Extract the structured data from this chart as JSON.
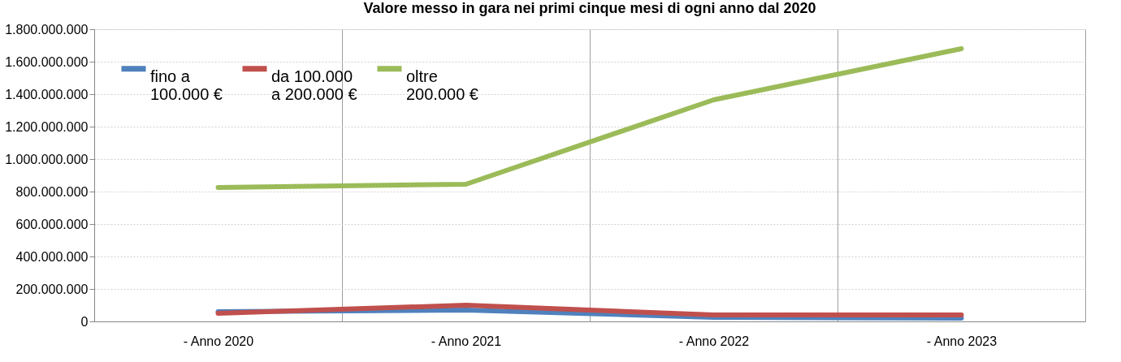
{
  "chart_data": {
    "type": "line",
    "title": "Valore messo in gara nei primi cinque mesi di ogni anno dal 2020",
    "categories": [
      "- Anno 2020",
      "- Anno 2021",
      "- Anno 2022",
      "- Anno 2023"
    ],
    "series": [
      {
        "name": "fino a\n100.000 €",
        "color": "#4f81bd",
        "values": [
          60000000,
          70000000,
          25000000,
          20000000
        ]
      },
      {
        "name": "da 100.000\na 200.000 €",
        "color": "#c0504d",
        "values": [
          50000000,
          100000000,
          40000000,
          40000000
        ]
      },
      {
        "name": "oltre\n200.000 €",
        "color": "#9bbb59",
        "values": [
          825000000,
          845000000,
          1365000000,
          1680000000
        ]
      }
    ],
    "ylim": [
      0,
      1800000000
    ],
    "yticks": [
      {
        "value": 0,
        "label": "0"
      },
      {
        "value": 200000000,
        "label": "200.000.000"
      },
      {
        "value": 400000000,
        "label": "400.000.000"
      },
      {
        "value": 600000000,
        "label": "600.000.000"
      },
      {
        "value": 800000000,
        "label": "800.000.000"
      },
      {
        "value": 1000000000,
        "label": "1.000.000.000"
      },
      {
        "value": 1200000000,
        "label": "1.200.000.000"
      },
      {
        "value": 1400000000,
        "label": "1.400.000.000"
      },
      {
        "value": 1600000000,
        "label": "1.600.000.000"
      },
      {
        "value": 1800000000,
        "label": "1.800.000.000"
      }
    ],
    "grid": true,
    "legend": "top left",
    "marker": "none",
    "line_style": "solid"
  }
}
